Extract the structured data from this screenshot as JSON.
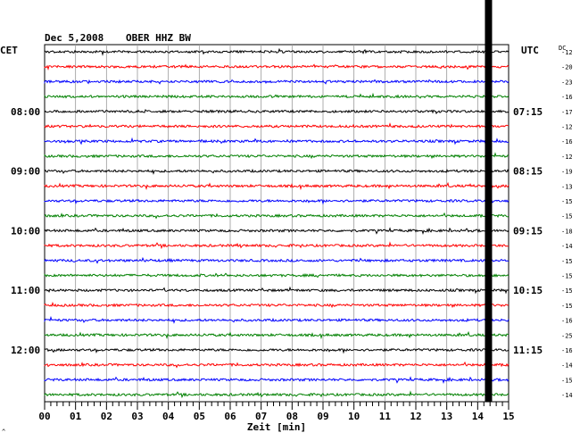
{
  "header": {
    "date": "Dec 5,2008",
    "station": "OBER HHZ BW"
  },
  "left_axis": {
    "label": "CET"
  },
  "right_axis": {
    "label": "UTC",
    "dc_label": "DC"
  },
  "footer": {
    "mark": "^"
  },
  "chart_data": {
    "type": "line",
    "title": "Dec 5,2008    OBER HHZ BW",
    "xlabel": "Zeit [min]",
    "xlim": [
      0,
      15
    ],
    "x_ticks": [
      "00",
      "01",
      "02",
      "03",
      "04",
      "05",
      "06",
      "07",
      "08",
      "09",
      "10",
      "11",
      "12",
      "13",
      "14",
      "15"
    ],
    "trace_count": 24,
    "trace_colors": [
      "#000000",
      "#ff0000",
      "#0000ff",
      "#008000"
    ],
    "left_time_labels": [
      {
        "trace": 4,
        "text": "08:00"
      },
      {
        "trace": 8,
        "text": "09:00"
      },
      {
        "trace": 12,
        "text": "10:00"
      },
      {
        "trace": 16,
        "text": "11:00"
      },
      {
        "trace": 20,
        "text": "12:00"
      }
    ],
    "right_time_labels": [
      {
        "trace": 4,
        "text": "07:15"
      },
      {
        "trace": 8,
        "text": "08:15"
      },
      {
        "trace": 12,
        "text": "09:15"
      },
      {
        "trace": 16,
        "text": "10:15"
      },
      {
        "trace": 20,
        "text": "11:15"
      }
    ],
    "dc_offsets": [
      "-12",
      "-20",
      "-23",
      "-16",
      "-17",
      "-12",
      "-16",
      "-12",
      "-19",
      "-13",
      "-15",
      "-15",
      "-18",
      "-14",
      "-15",
      "-15",
      "-15",
      "-15",
      "-16",
      "-25",
      "-16",
      "-14",
      "-15",
      "-14"
    ],
    "event_bar": {
      "minute": 14.35,
      "color": "#000000"
    }
  }
}
